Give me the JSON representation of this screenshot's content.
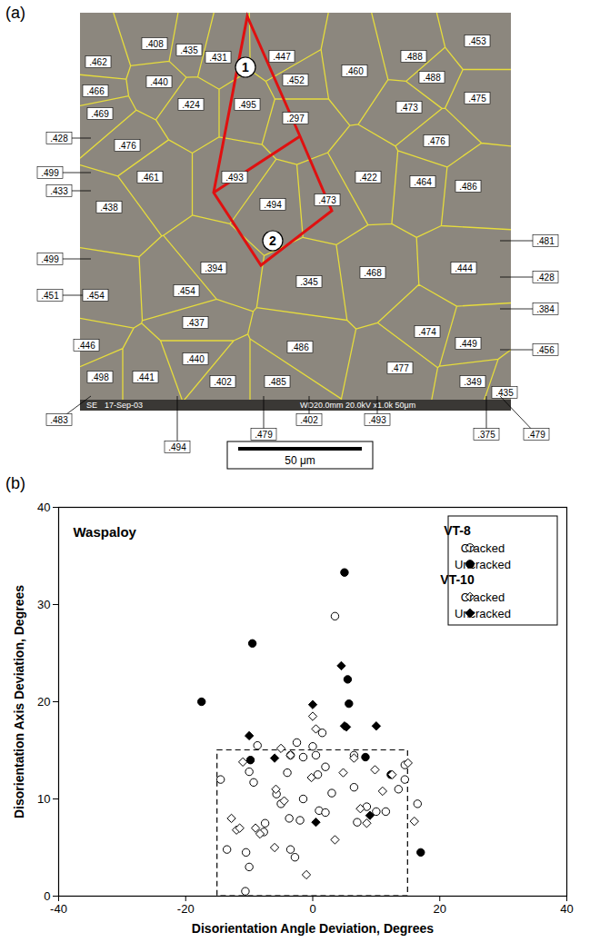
{
  "panel_letters": [
    "(a)",
    "(b)"
  ],
  "panel_a": {
    "grain_labels": [
      ".408",
      ".462",
      ".435",
      ".431",
      ".447",
      ".488",
      ".453",
      ".466",
      ".440",
      ".495",
      ".452",
      ".460",
      ".488",
      ".475",
      ".469",
      ".424",
      ".297",
      ".473",
      ".476",
      ".428",
      ".476",
      ".499",
      ".433",
      ".461",
      ".493",
      ".494",
      ".473",
      ".422",
      ".464",
      ".486",
      ".438",
      ".481",
      ".499",
      ".451",
      ".454",
      ".454",
      ".394",
      ".345",
      ".468",
      ".444",
      ".428",
      ".384",
      ".437",
      ".474",
      ".449",
      ".446",
      ".440",
      ".486",
      ".477",
      ".456",
      ".498",
      ".441",
      ".402",
      ".485",
      ".349",
      ".435",
      ".483",
      ".479",
      ".402",
      ".493",
      ".375",
      ".479",
      ".494"
    ],
    "region_labels": [
      "1",
      "2"
    ],
    "footer_text": [
      "SE",
      "17-Sep-03",
      "WD20.0mm 20.0kV x1.0k 50μm"
    ],
    "scale_bar": "50 μm"
  },
  "chart_data": {
    "type": "scatter",
    "x_label": "Disorientation Angle Deviation, Degrees",
    "y_label": "Disorientation Axis Deviation, Degrees",
    "annotation": "Waspaloy",
    "xlim": [
      -40,
      40
    ],
    "xticks": [
      -40,
      -20,
      0,
      20,
      40
    ],
    "ylim": [
      0,
      40
    ],
    "yticks": [
      0,
      10,
      20,
      30,
      40
    ],
    "grid": false,
    "legend": "top-right",
    "box": {
      "x": [
        -15,
        15
      ],
      "y": [
        0,
        15
      ]
    },
    "series": [
      {
        "group": "VT-8",
        "name": "Cracked",
        "marker": "open_circle",
        "color": "#000000",
        "x": [
          3.5,
          -8.7,
          -10,
          0,
          0.5,
          2,
          -2.5,
          -3.5,
          -1.5,
          -14.5,
          -9.3,
          -5.7,
          -4,
          -7.5,
          -3.7,
          -2,
          -7.7,
          -10.5,
          -10,
          -13.5,
          -3.5,
          -2.8,
          -10.6,
          1,
          2,
          3,
          6.5,
          8.5,
          7,
          11.5,
          14.5,
          13.5,
          16.5,
          6.5,
          1.5,
          0.8,
          -1.5,
          -5,
          10,
          14.5
        ],
        "values": [
          28.8,
          15.5,
          12.8,
          15.4,
          14.5,
          13.3,
          15.8,
          14.5,
          14.3,
          12,
          11.7,
          10.5,
          12.7,
          7.5,
          8,
          7.8,
          6.6,
          4.5,
          3,
          4.8,
          4.8,
          4,
          0.5,
          8.8,
          8.6,
          10.6,
          11.2,
          9.2,
          7.6,
          8.7,
          12,
          11,
          9.5,
          14.5,
          16.8,
          12.5,
          10,
          9.5,
          8.7,
          13.5
        ]
      },
      {
        "group": "VT-8",
        "name": "Uncracked",
        "marker": "filled_circle",
        "color": "#000000",
        "x": [
          5,
          -9.5,
          -17.5,
          5.5,
          5.7,
          8.3,
          12.3,
          -9.8,
          17
        ],
        "values": [
          33.3,
          26,
          20,
          22.3,
          19.8,
          14.3,
          12.5,
          14,
          4.5
        ]
      },
      {
        "group": "VT-10",
        "name": "Cracked",
        "marker": "open_diamond",
        "color": "#000000",
        "x": [
          0,
          0.5,
          -5,
          -12.8,
          -12,
          -11.5,
          -9,
          -8.3,
          -6,
          -4.5,
          -1,
          3.5,
          -11,
          -5.8,
          4.8,
          6.5,
          7.5,
          8.5,
          11,
          12.5,
          15,
          16,
          -0.2,
          -3.5,
          9.8
        ],
        "values": [
          18.5,
          17.2,
          15.2,
          8,
          6.8,
          7,
          7,
          6.4,
          5,
          9.8,
          2.2,
          5.8,
          13.8,
          11,
          12.7,
          14.2,
          9,
          7.5,
          10.8,
          12.5,
          13.7,
          7.7,
          12.2,
          14.5,
          13
        ]
      },
      {
        "group": "VT-10",
        "name": "Uncracked",
        "marker": "filled_diamond",
        "color": "#000000",
        "x": [
          4.5,
          0,
          5,
          10,
          -10,
          -6,
          9,
          0.5,
          5.3
        ],
        "values": [
          23.7,
          19.7,
          17.5,
          17.5,
          16.5,
          14.2,
          8.3,
          7.6,
          17.4
        ]
      }
    ]
  }
}
